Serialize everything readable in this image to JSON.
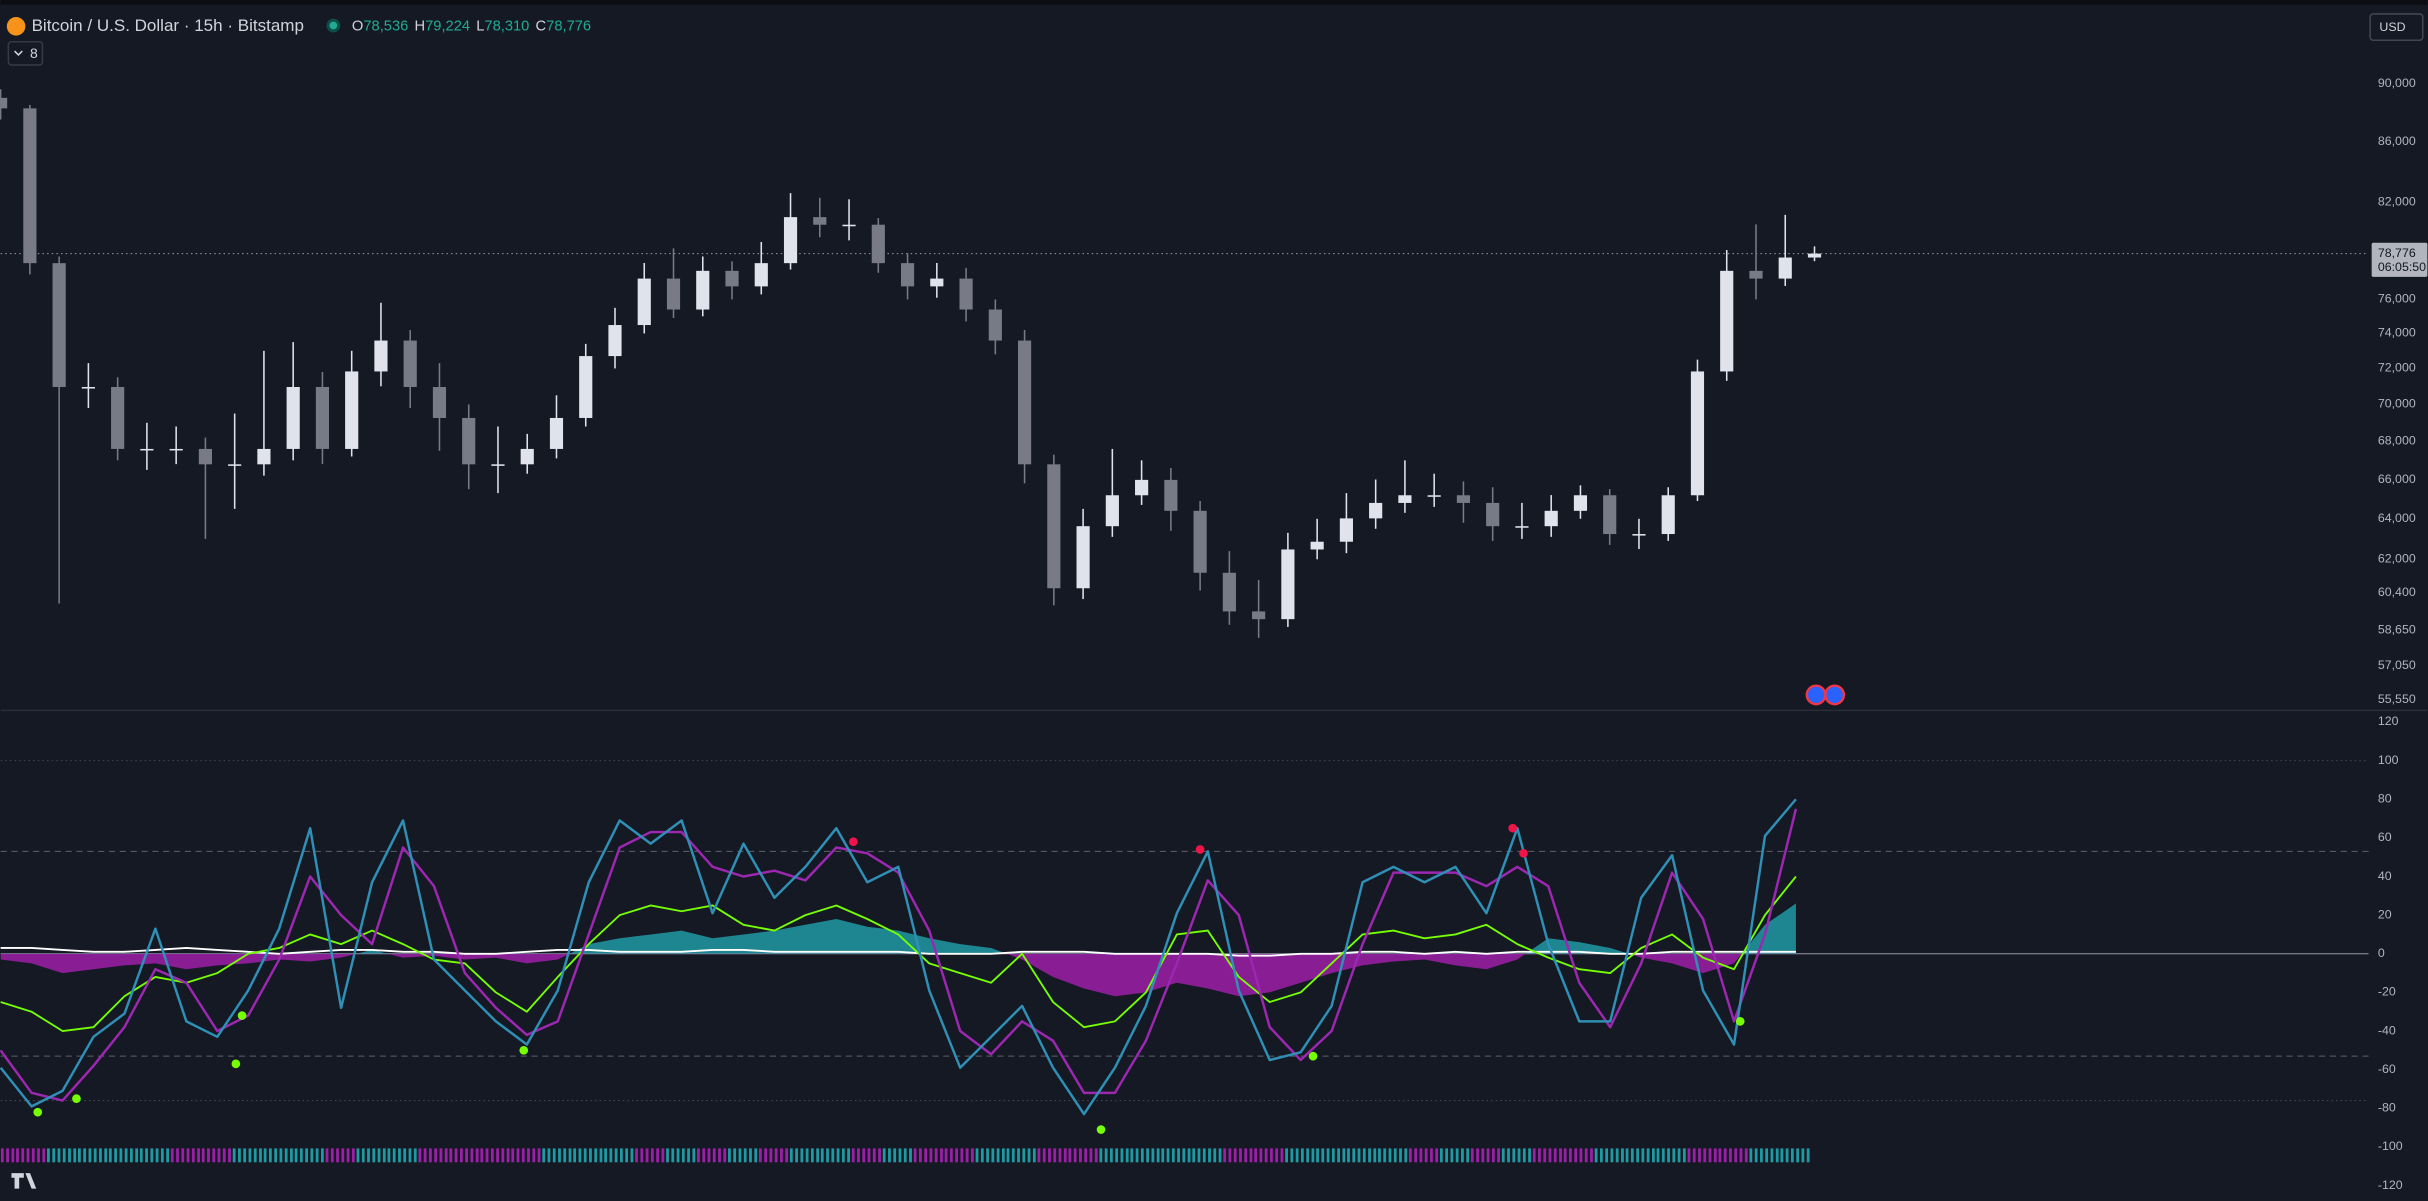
{
  "header": {
    "symbol": "Bitcoin / U.S. Dollar · 15h · Bitstamp",
    "ohlc": [
      {
        "label": "O",
        "value": "78,536"
      },
      {
        "label": "H",
        "value": "79,224"
      },
      {
        "label": "L",
        "value": "78,310"
      },
      {
        "label": "C",
        "value": "78,776"
      }
    ],
    "indicators": "8",
    "currency": "USD"
  },
  "price_chart": {
    "type": "candlestick",
    "log": true,
    "ylim": [
      55080,
      96090
    ],
    "up_color": "#e0e3eb",
    "down_color": "#787b86",
    "yticks": [
      {
        "value": 90000,
        "label": "90,000"
      },
      {
        "value": 86000,
        "label": "86,000"
      },
      {
        "value": 82000,
        "label": "82,000"
      },
      {
        "value": 76000,
        "label": "76,000"
      },
      {
        "value": 74000,
        "label": "74,000"
      },
      {
        "value": 72000,
        "label": "72,000"
      },
      {
        "value": 70000,
        "label": "70,000"
      },
      {
        "value": 68000,
        "label": "68,000"
      },
      {
        "value": 66000,
        "label": "66,000"
      },
      {
        "value": 64000,
        "label": "64,000"
      },
      {
        "value": 62000,
        "label": "62,000"
      },
      {
        "value": 60400,
        "label": "60,400"
      },
      {
        "value": 58650,
        "label": "58,650"
      },
      {
        "value": 57050,
        "label": "57,050"
      },
      {
        "value": 55550,
        "label": "55,550"
      }
    ],
    "last_price": {
      "value": 78776,
      "label": "78,776"
    },
    "countdown": "06:05:50",
    "candles": [
      [
        89000,
        89600,
        87500,
        88270
      ],
      [
        88270,
        88500,
        77500,
        78190
      ],
      [
        78190,
        78600,
        59890,
        70960
      ],
      [
        70960,
        72300,
        69800,
        70960
      ],
      [
        70960,
        71500,
        67000,
        67600
      ],
      [
        67600,
        69000,
        66500,
        67600
      ],
      [
        67600,
        68800,
        66800,
        67600
      ],
      [
        67600,
        68200,
        63000,
        66790
      ],
      [
        66790,
        69500,
        64500,
        66790
      ],
      [
        66790,
        73000,
        66200,
        67600
      ],
      [
        67600,
        73500,
        67000,
        70960
      ],
      [
        70960,
        71800,
        66800,
        67600
      ],
      [
        67600,
        73000,
        67200,
        71830
      ],
      [
        71830,
        75800,
        71000,
        73590
      ],
      [
        73590,
        74200,
        69800,
        70960
      ],
      [
        70960,
        72300,
        67500,
        69260
      ],
      [
        69260,
        70000,
        65500,
        66790
      ],
      [
        66790,
        68800,
        65300,
        66790
      ],
      [
        66790,
        68400,
        66300,
        67600
      ],
      [
        67600,
        70500,
        67100,
        69260
      ],
      [
        69260,
        73400,
        68800,
        72700
      ],
      [
        72700,
        75500,
        72000,
        74490
      ],
      [
        74490,
        78200,
        74000,
        77250
      ],
      [
        77250,
        79100,
        74900,
        75400
      ],
      [
        75400,
        78600,
        75000,
        77720
      ],
      [
        77720,
        78300,
        76000,
        76780
      ],
      [
        76780,
        79500,
        76300,
        78190
      ],
      [
        78190,
        82600,
        77800,
        81060
      ],
      [
        81060,
        82300,
        79800,
        80580
      ],
      [
        80580,
        82200,
        79600,
        80580
      ],
      [
        80580,
        81000,
        77600,
        78190
      ],
      [
        78190,
        78800,
        76000,
        76780
      ],
      [
        76780,
        78200,
        76100,
        77250
      ],
      [
        77250,
        77900,
        74700,
        75400
      ],
      [
        75400,
        76000,
        72800,
        73590
      ],
      [
        73590,
        74200,
        65800,
        66790
      ],
      [
        66790,
        67300,
        59800,
        60610
      ],
      [
        60610,
        64500,
        60100,
        63630
      ],
      [
        63630,
        67600,
        63100,
        65190
      ],
      [
        65190,
        67000,
        64700,
        65980
      ],
      [
        65980,
        66600,
        63400,
        64400
      ],
      [
        64400,
        64900,
        60500,
        61350
      ],
      [
        61350,
        62400,
        58900,
        59520
      ],
      [
        59520,
        61000,
        58300,
        59160
      ],
      [
        59160,
        63300,
        58800,
        62480
      ],
      [
        62480,
        64000,
        62000,
        62860
      ],
      [
        62860,
        65300,
        62300,
        64020
      ],
      [
        64020,
        66000,
        63500,
        64800
      ],
      [
        64800,
        67000,
        64300,
        65190
      ],
      [
        65190,
        66300,
        64600,
        65190
      ],
      [
        65190,
        65900,
        63800,
        64800
      ],
      [
        64800,
        65600,
        62900,
        63630
      ],
      [
        63630,
        64800,
        63000,
        63630
      ],
      [
        63630,
        65200,
        63100,
        64400
      ],
      [
        64400,
        65700,
        64000,
        65190
      ],
      [
        65190,
        65500,
        62700,
        63240
      ],
      [
        63240,
        64000,
        62500,
        63240
      ],
      [
        63240,
        65600,
        62900,
        65190
      ],
      [
        65190,
        72500,
        64900,
        71830
      ],
      [
        71830,
        79000,
        71300,
        77720
      ],
      [
        77720,
        80600,
        76000,
        77250
      ],
      [
        77250,
        81200,
        76800,
        78536
      ],
      [
        78536,
        79224,
        78310,
        78776
      ]
    ]
  },
  "oscillator": {
    "type": "line",
    "ylim": [
      -128,
      126
    ],
    "yticks": [
      120,
      100,
      80,
      60,
      40,
      20,
      0,
      -20,
      -40,
      -60,
      -80,
      -100,
      -120
    ],
    "dashed_levels": [
      53,
      -53
    ],
    "dotted_levels": [
      100,
      -76
    ],
    "area": {
      "colors": [
        "#1e9aa3",
        "#9c1fa8"
      ],
      "values": [
        -3,
        -5,
        -10,
        -8,
        -6,
        -5,
        -8,
        -6,
        -5,
        -3,
        -4,
        -2,
        2,
        -2,
        -1,
        -3,
        -2,
        -5,
        -3,
        5,
        8,
        10,
        12,
        8,
        10,
        12,
        15,
        18,
        14,
        12,
        8,
        5,
        3,
        -3,
        -12,
        -18,
        -22,
        -20,
        -15,
        -18,
        -22,
        -20,
        -15,
        -10,
        -6,
        -4,
        -3,
        -6,
        -8,
        -3,
        8,
        6,
        3,
        -2,
        -5,
        -10,
        -5,
        15,
        26
      ]
    },
    "series": [
      {
        "color": "#ffffff",
        "values": [
          3,
          3,
          2,
          1,
          1,
          2,
          3,
          2,
          1,
          0,
          1,
          2,
          2,
          1,
          1,
          0,
          0,
          1,
          2,
          2,
          1,
          1,
          1,
          2,
          2,
          1,
          1,
          1,
          1,
          1,
          0,
          0,
          0,
          1,
          1,
          1,
          0,
          0,
          0,
          0,
          -1,
          -1,
          0,
          0,
          1,
          1,
          0,
          1,
          0,
          1,
          1,
          1,
          0,
          0,
          1,
          1,
          1,
          1,
          1
        ]
      },
      {
        "color": "#76ff03",
        "values": [
          -25,
          -30,
          -40,
          -38,
          -22,
          -12,
          -15,
          -10,
          0,
          3,
          10,
          5,
          12,
          5,
          -3,
          -5,
          -20,
          -30,
          -12,
          5,
          20,
          25,
          22,
          25,
          15,
          12,
          20,
          25,
          18,
          10,
          -5,
          -10,
          -15,
          0,
          -25,
          -38,
          -35,
          -20,
          10,
          12,
          -12,
          -25,
          -20,
          -5,
          10,
          12,
          8,
          10,
          15,
          5,
          -2,
          -8,
          -10,
          3,
          10,
          -2,
          -8,
          20,
          40
        ]
      },
      {
        "color": "#9c27b0",
        "values": [
          -50,
          -72,
          -76,
          -58,
          -38,
          -8,
          -15,
          -40,
          -32,
          -3,
          40,
          20,
          5,
          55,
          35,
          -10,
          -28,
          -42,
          -35,
          10,
          55,
          63,
          63,
          45,
          40,
          43,
          38,
          55,
          52,
          42,
          12,
          -40,
          -52,
          -35,
          -45,
          -72,
          -72,
          -45,
          -5,
          38,
          20,
          -38,
          -55,
          -40,
          5,
          42,
          42,
          42,
          35,
          45,
          35,
          -15,
          -38,
          -5,
          42,
          18,
          -35,
          10,
          75
        ]
      },
      {
        "color": "#2f8fb5",
        "values": [
          -59,
          -79,
          -71,
          -43,
          -31,
          13,
          -35,
          -43,
          -19,
          13,
          65,
          -28,
          37,
          69,
          -3,
          -19,
          -35,
          -47,
          -19,
          37,
          69,
          57,
          69,
          21,
          57,
          29,
          45,
          65,
          37,
          45,
          -19,
          -59,
          -43,
          -27,
          -59,
          -83,
          -59,
          -27,
          21,
          53,
          -19,
          -55,
          -51,
          -27,
          37,
          45,
          37,
          45,
          21,
          65,
          5,
          -35,
          -35,
          29,
          51,
          -19,
          -47,
          61,
          80
        ]
      }
    ],
    "buy_signals": {
      "color": "#76ff03",
      "x": [
        1.2,
        2.45,
        7.6,
        7.8,
        16.9,
        35.55,
        42.4,
        56.2
      ],
      "values": [
        -82,
        -75,
        -57,
        -32,
        -50,
        -91,
        -53,
        -35
      ]
    },
    "sell_signals": {
      "color": "#f0144b",
      "x": [
        27.55,
        38.75,
        48.85,
        49.2
      ],
      "values": [
        58,
        54,
        65,
        52
      ]
    }
  }
}
